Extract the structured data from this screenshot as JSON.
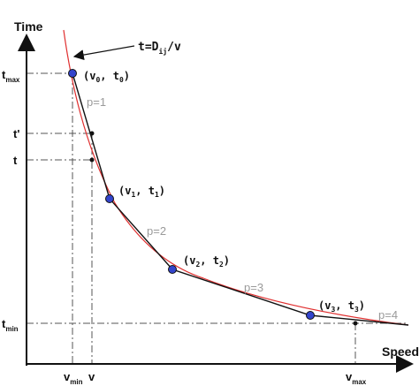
{
  "axes": {
    "y_title": "Time",
    "x_title": "Speed",
    "y_ticks": [
      "t",
      "max",
      "t'",
      "t",
      "t",
      "min"
    ],
    "x_ticks": [
      "v",
      "min",
      "v",
      "v",
      "max"
    ]
  },
  "curve_label": "t=D",
  "curve_label_sub": "ij",
  "curve_label_tail": "/v",
  "points": [
    {
      "pre": "(v",
      "sub1": "0",
      "mid": ", t",
      "sub2": "0",
      "post": ")"
    },
    {
      "pre": "(v",
      "sub1": "1",
      "mid": ", t",
      "sub2": "1",
      "post": ")"
    },
    {
      "pre": "(v",
      "sub1": "2",
      "mid": ", t",
      "sub2": "2",
      "post": ")"
    },
    {
      "pre": "(v",
      "sub1": "3",
      "mid": ", t",
      "sub2": "3",
      "post": ")"
    }
  ],
  "segments": [
    "p=1",
    "p=2",
    "p=3",
    "p=4"
  ],
  "colors": {
    "axis": "#111111",
    "curve": "#e03030",
    "polyline": "#111111",
    "point_fill": "#3344cc",
    "dashed": "#555555",
    "segment_label": "#9a9a9a"
  }
}
